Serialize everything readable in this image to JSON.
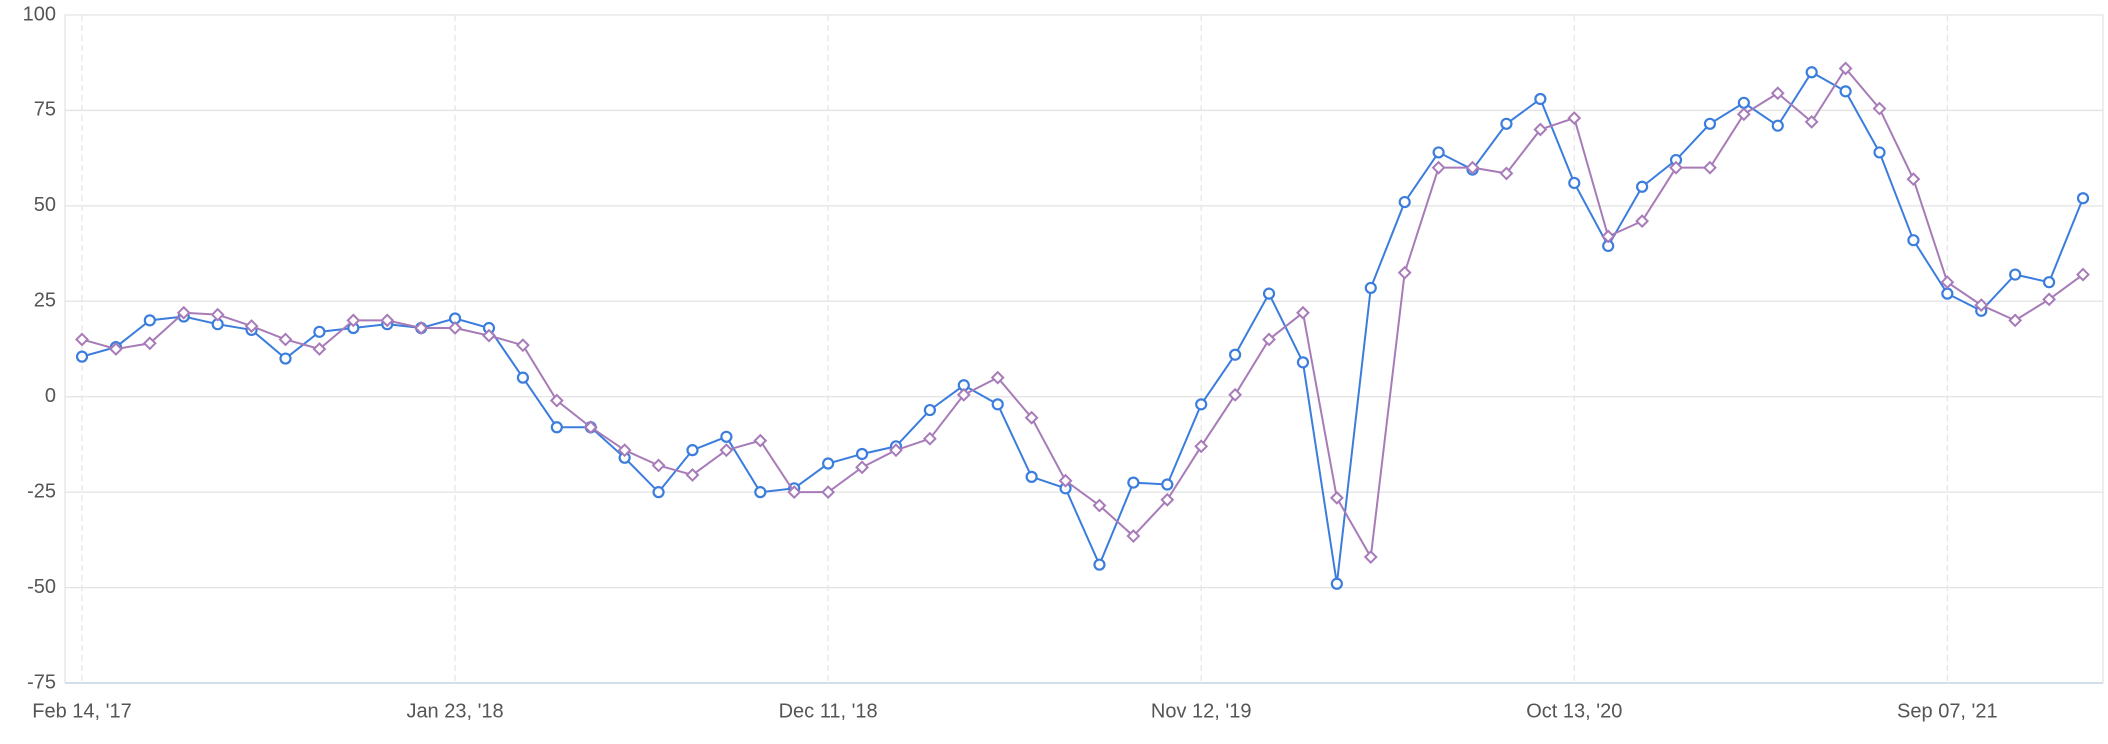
{
  "chart_data": {
    "type": "line",
    "categories": [
      "Feb 14, '17",
      null,
      null,
      null,
      null,
      null,
      null,
      null,
      null,
      null,
      null,
      "Jan 23, '18",
      null,
      null,
      null,
      null,
      null,
      null,
      null,
      null,
      null,
      null,
      "Dec 11, '18",
      null,
      null,
      null,
      null,
      null,
      null,
      null,
      null,
      null,
      null,
      "Nov 12, '19",
      null,
      null,
      null,
      null,
      null,
      null,
      null,
      null,
      null,
      null,
      "Oct 13, '20",
      null,
      null,
      null,
      null,
      null,
      null,
      null,
      null,
      null,
      null,
      "Sep 07, '21",
      null,
      null,
      null,
      null
    ],
    "series": [
      {
        "color": "#3b7ddd",
        "marker": "circle",
        "values": [
          10.5,
          13,
          20,
          21,
          19,
          17.5,
          10,
          17,
          18,
          19,
          18,
          20.5,
          18,
          5,
          -8,
          -8,
          -16,
          -25,
          -14,
          -10.5,
          -25,
          -24,
          -17.5,
          -15,
          -13,
          -3.5,
          3,
          -2,
          -21,
          -24,
          -44,
          -22.5,
          -23,
          -2,
          11,
          27,
          9,
          -49,
          28.5,
          51,
          64,
          59.5,
          71.5,
          78,
          56,
          39.5,
          55,
          62,
          71.5,
          77,
          71,
          85,
          80,
          64,
          41,
          27,
          22.5,
          32,
          30,
          52
        ]
      },
      {
        "color": "#a77bb8",
        "marker": "diamond",
        "values": [
          15,
          12.5,
          14,
          22,
          21.5,
          18.5,
          15,
          12.5,
          20,
          20,
          18,
          18,
          16,
          13.5,
          -1,
          -8,
          -14,
          -18,
          -20.5,
          -14,
          -11.5,
          -25,
          -25,
          -18.5,
          -14,
          -11,
          0.5,
          5,
          -5.5,
          -22,
          -28.5,
          -36.5,
          -27,
          -13,
          0.5,
          15,
          22,
          -26.5,
          -42,
          32.5,
          60,
          60,
          58.5,
          70,
          73,
          42,
          46,
          60,
          60,
          74,
          79.5,
          72,
          86,
          75.5,
          57,
          30,
          24,
          20,
          25.5,
          32
        ]
      }
    ],
    "ylim": [
      -75,
      100
    ],
    "yticks": [
      -75,
      -50,
      -25,
      0,
      25,
      50,
      75,
      100
    ],
    "grid": true
  }
}
